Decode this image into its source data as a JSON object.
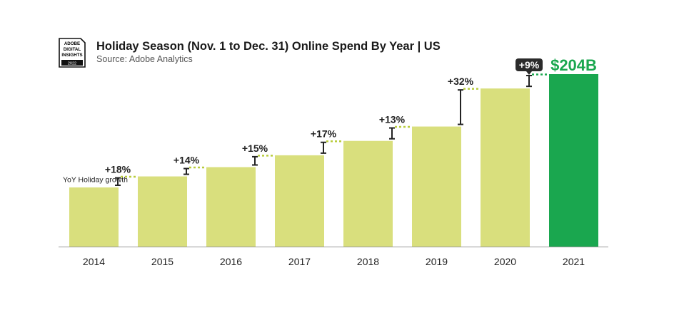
{
  "header": {
    "title": "Holiday Season (Nov. 1 to Dec. 31) Online Spend By Year | US",
    "subtitle": "Source: Adobe Analytics",
    "logo_text": [
      "ADOBE",
      "DIGITAL",
      "INSIGHTS",
      "2022"
    ]
  },
  "chart_data": {
    "type": "bar",
    "title": "Holiday Season (Nov. 1 to Dec. 31) Online Spend By Year | US",
    "categories": [
      "2014",
      "2015",
      "2016",
      "2017",
      "2018",
      "2019",
      "2020",
      "2021"
    ],
    "values": [
      70,
      83,
      94,
      108,
      125,
      142,
      187,
      204
    ],
    "unit": "$B",
    "ylim": [
      0,
      204
    ],
    "grid": false,
    "highlight_label": "$204B",
    "growth_annotation_label": "YoY Holiday growth",
    "growth_labels": [
      "+18%",
      "+14%",
      "+15%",
      "+17%",
      "+13%",
      "+32%",
      "+9%"
    ],
    "colors": {
      "bar": "#d9df7d",
      "highlight": "#1aa74f",
      "connector": "#b8cc3c",
      "highlight_connector": "#1aa74f",
      "text": "#222222"
    }
  }
}
